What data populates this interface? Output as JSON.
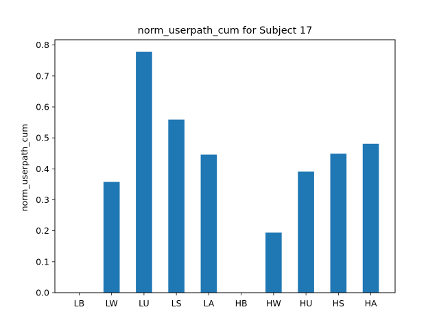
{
  "chart_data": {
    "type": "bar",
    "title": "norm_userpath_cum for Subject 17",
    "xlabel": "",
    "ylabel": "norm_userpath_cum",
    "categories": [
      "LB",
      "LW",
      "LU",
      "LS",
      "LA",
      "HB",
      "HW",
      "HU",
      "HS",
      "HA"
    ],
    "values": [
      0,
      0.358,
      0.778,
      0.559,
      0.446,
      0,
      0.194,
      0.391,
      0.449,
      0.481
    ],
    "ylim": [
      0,
      0.817
    ],
    "yticks": [
      "0.0",
      "0.1",
      "0.2",
      "0.3",
      "0.4",
      "0.5",
      "0.6",
      "0.7",
      "0.8"
    ],
    "grid": false,
    "legend": "none",
    "bar_color": "#1f77b4"
  }
}
